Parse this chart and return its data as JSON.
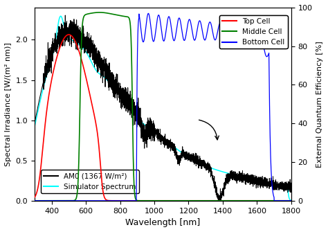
{
  "title": "",
  "xlabel": "Wavelength [nm]",
  "ylabel_left": "Spectral Irradiance [W/(m² nm)]",
  "ylabel_right": "External Quantum Efficiency [%]",
  "xlim": [
    300,
    1800
  ],
  "ylim_left": [
    0,
    2.4
  ],
  "ylim_right": [
    0,
    100
  ],
  "yticks_left": [
    0.0,
    0.5,
    1.0,
    1.5,
    2.0
  ],
  "yticks_right": [
    0,
    20,
    40,
    60,
    80,
    100
  ],
  "xticks": [
    400,
    600,
    800,
    1000,
    1200,
    1400,
    1600,
    1800
  ],
  "legend1_entries": [
    {
      "label": "Top Cell",
      "color": "red"
    },
    {
      "label": "Middle Cell",
      "color": "green"
    },
    {
      "label": "Bottom Cell",
      "color": "blue"
    }
  ],
  "legend2_entries": [
    {
      "label": "AM0 (1367 W/m²)",
      "color": "black"
    },
    {
      "label": "Simulator Spectrum",
      "color": "cyan"
    }
  ],
  "background_color": "#ffffff"
}
